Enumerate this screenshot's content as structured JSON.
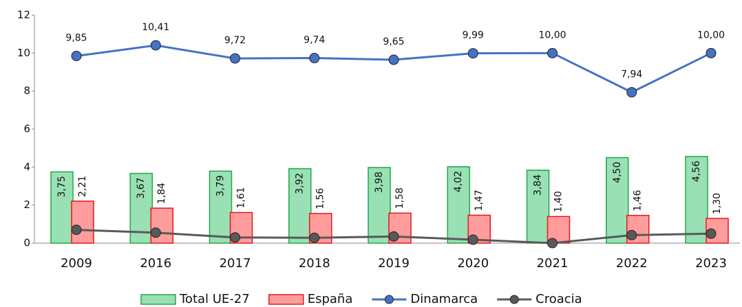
{
  "chart_data": {
    "type": "bar-line",
    "categories": [
      "2009",
      "2016",
      "2017",
      "2018",
      "2019",
      "2020",
      "2021",
      "2022",
      "2023"
    ],
    "ylim": [
      0,
      12
    ],
    "yticks": [
      0,
      2,
      4,
      6,
      8,
      10,
      12
    ],
    "legend": "bottom",
    "series": [
      {
        "name": "Total UE-27",
        "type": "bar",
        "color": "#99e0b4",
        "edge": "#22a844",
        "values": [
          3.75,
          3.67,
          3.79,
          3.92,
          3.98,
          4.02,
          3.84,
          4.5,
          4.56
        ],
        "value_labels": [
          "3,75",
          "3,67",
          "3,79",
          "3,92",
          "3,98",
          "4,02",
          "3,84",
          "4,50",
          "4,56"
        ]
      },
      {
        "name": "España",
        "type": "bar",
        "color": "#ff9c9c",
        "edge": "#e8161c",
        "values": [
          2.21,
          1.84,
          1.61,
          1.56,
          1.58,
          1.47,
          1.4,
          1.46,
          1.3
        ],
        "value_labels": [
          "2,21",
          "1,84",
          "1,61",
          "1,56",
          "1,58",
          "1,47",
          "1,40",
          "1,46",
          "1,30"
        ]
      },
      {
        "name": "Dinamarca",
        "type": "line",
        "color": "#4472c4",
        "values": [
          9.85,
          10.41,
          9.72,
          9.74,
          9.65,
          9.99,
          10.0,
          7.94,
          10.0
        ],
        "value_labels": [
          "9,85",
          "10,41",
          "9,72",
          "9,74",
          "9,65",
          "9,99",
          "10,00",
          "7,94",
          "10,00"
        ]
      },
      {
        "name": "Croacia",
        "type": "line",
        "color": "#595959",
        "values": [
          0.7,
          0.55,
          0.3,
          0.28,
          0.35,
          0.18,
          0.0,
          0.42,
          0.5
        ]
      }
    ]
  }
}
